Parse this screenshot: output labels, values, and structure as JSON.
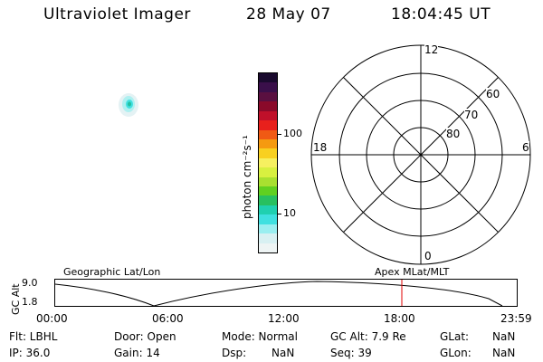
{
  "header": {
    "instrument": "Ultraviolet Imager",
    "date": "28 May 07",
    "time": "18:04:45 UT"
  },
  "colorbar": {
    "label": "photon cm⁻²s⁻¹",
    "ticks": [
      "100",
      "10"
    ],
    "colors_top_to_bottom": [
      "#1a0a2e",
      "#3a0f4a",
      "#5a1040",
      "#8a0a2a",
      "#c0102a",
      "#e8201c",
      "#f05a14",
      "#f59a10",
      "#f8d020",
      "#f6f060",
      "#d8f040",
      "#a8e030",
      "#60d020",
      "#28c060",
      "#20d0b0",
      "#40e0e0",
      "#9aeef0",
      "#d8f0f2",
      "#eef4f4"
    ]
  },
  "polar_grid": {
    "mlt_labels": {
      "top": "12",
      "left": "18",
      "right": "6",
      "bottom": "0"
    },
    "lat_labels": [
      "60",
      "70",
      "80"
    ]
  },
  "timeline": {
    "geo_label": "Geographic Lat/Lon",
    "apex_label": "Apex MLat/MLT",
    "axis_label": "GC Alt",
    "y_ticks": [
      "9.0",
      "1.8"
    ],
    "x_ticks": [
      "00:00",
      "06:00",
      "12:00",
      "18:00",
      "23:59"
    ],
    "marker_color": "#e00000"
  },
  "status": {
    "row1": {
      "flt": "Flt: LBHL",
      "door": "Door: Open",
      "mode": "Mode: Normal",
      "gc_alt": "GC Alt: 7.9 Re",
      "glat_label": "GLat:",
      "glat_value": "NaN"
    },
    "row2": {
      "ip": "IP: 36.0",
      "gain": "Gain: 14",
      "dsp_label": "Dsp:",
      "dsp_value": "NaN",
      "seq": "Seq: 39",
      "glon_label": "GLon:",
      "glon_value": "NaN"
    }
  }
}
